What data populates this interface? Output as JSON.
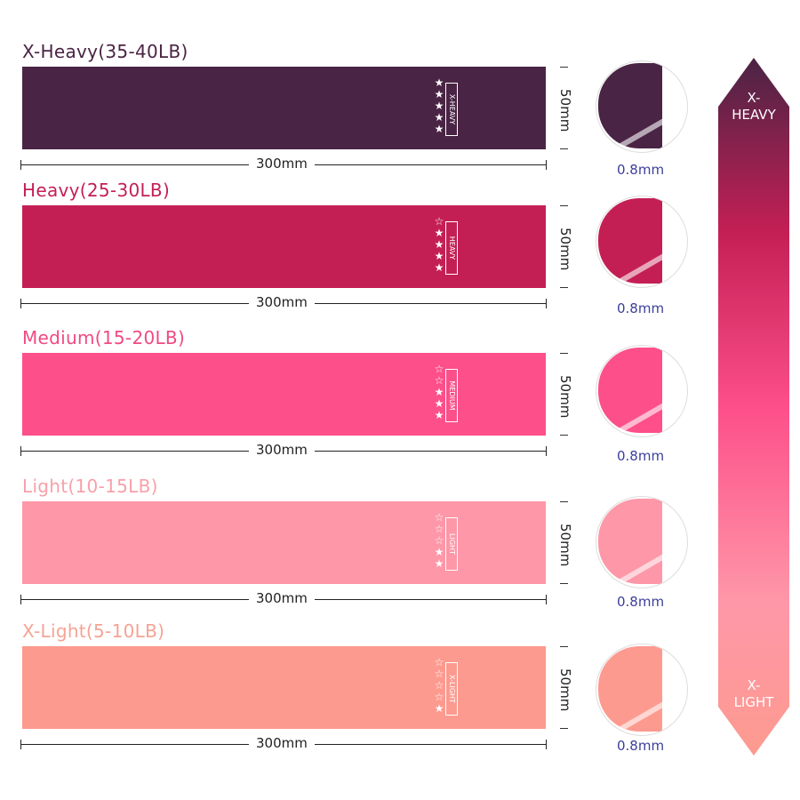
{
  "bands": [
    {
      "title": "X-Heavy(35-40LB)",
      "title_color": "#4a2444",
      "color": "#4a2444",
      "tag": "X-HEAVY",
      "stars_filled": 5,
      "stars_total": 5,
      "width": "300mm",
      "height": "50mm",
      "thickness": "0.8mm"
    },
    {
      "title": "Heavy(25-30LB)",
      "title_color": "#c41f55",
      "color": "#c41f55",
      "tag": "HEAVY",
      "stars_filled": 4,
      "stars_total": 5,
      "width": "300mm",
      "height": "50mm",
      "thickness": "0.8mm"
    },
    {
      "title": "Medium(15-20LB)",
      "title_color": "#f04a83",
      "color": "#fd4f8a",
      "tag": "MEDIUM",
      "stars_filled": 3,
      "stars_total": 5,
      "width": "300mm",
      "height": "50mm",
      "thickness": "0.8mm"
    },
    {
      "title": "Light(10-15LB)",
      "title_color": "#f8a0a9",
      "color": "#fe97a8",
      "tag": "LIGHT",
      "stars_filled": 2,
      "stars_total": 5,
      "width": "300mm",
      "height": "50mm",
      "thickness": "0.8mm"
    },
    {
      "title": "X-Light(5-10LB)",
      "title_color": "#f5a395",
      "color": "#fd9a8f",
      "tag": "X-LIGHT",
      "stars_filled": 1,
      "stars_total": 5,
      "width": "300mm",
      "height": "50mm",
      "thickness": "0.8mm"
    }
  ],
  "scale": {
    "top_line1": "X-",
    "top_line2": "HEAVY",
    "bottom_line1": "X-",
    "bottom_line2": "LIGHT",
    "gradient": [
      "#4a2444",
      "#c41f55",
      "#fd4f8a",
      "#fe97a8",
      "#fd9a8f"
    ]
  }
}
